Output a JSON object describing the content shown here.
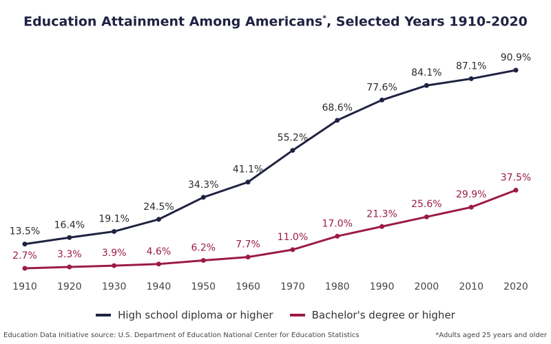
{
  "title": "Education Attainment Among Americans",
  "title_mark": "*",
  "title_suffix": ", Selected Years 1910-2020",
  "chart_data": {
    "type": "line",
    "title": "Education Attainment Among Americans*, Selected Years 1910-2020",
    "x": [
      "1910",
      "1920",
      "1930",
      "1940",
      "1950",
      "1960",
      "1970",
      "1980",
      "1990",
      "2000",
      "2010",
      "2020"
    ],
    "series": [
      {
        "name": "High school diploma or higher",
        "color": "#1f2241",
        "values": [
          13.5,
          16.4,
          19.1,
          24.5,
          34.3,
          41.1,
          55.2,
          68.6,
          77.6,
          84.1,
          87.1,
          90.9
        ]
      },
      {
        "name": "Bachelor's degree or higher",
        "color": "#9b1b45",
        "values": [
          2.7,
          3.3,
          3.9,
          4.6,
          6.2,
          7.7,
          11.0,
          17.0,
          21.3,
          25.6,
          29.9,
          37.5
        ]
      }
    ],
    "value_suffix": "%",
    "grid": false,
    "legend": "bottom"
  },
  "footer": {
    "source": "Education Data Initiative source: U.S. Department of Education National Center for Education Statistics",
    "note": "*Adults aged 25 years and older"
  }
}
